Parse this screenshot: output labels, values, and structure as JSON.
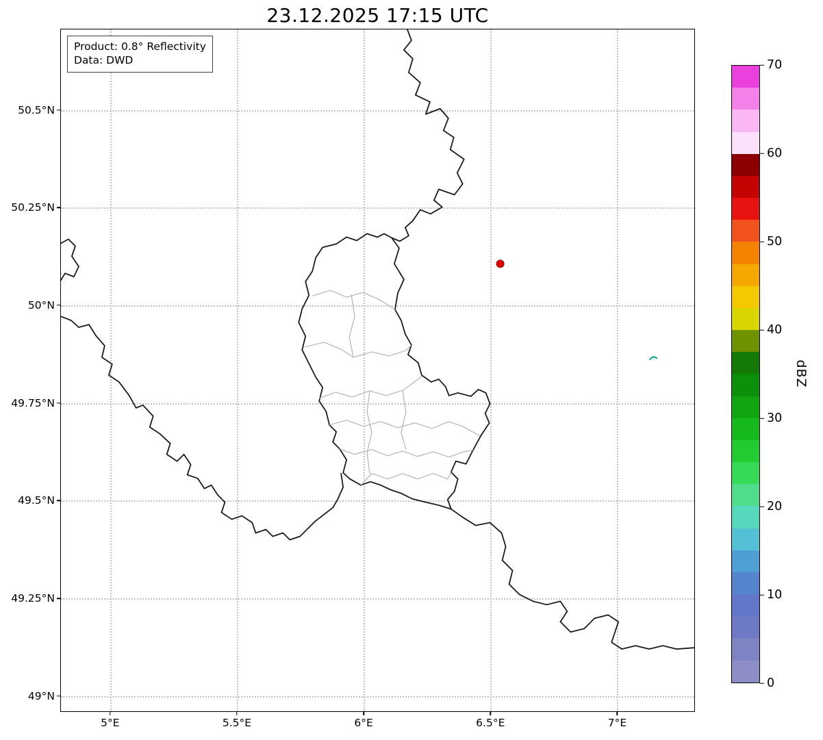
{
  "figure": {
    "title": "23.12.2025 17:15 UTC"
  },
  "info_box": {
    "product_line": "Product: 0.8° Reflectivity",
    "data_line": "Data: DWD"
  },
  "axes": {
    "x_ticks": [
      "5°E",
      "5.5°E",
      "6°E",
      "6.5°E",
      "7°E"
    ],
    "y_ticks": [
      "50.5°N",
      "50.25°N",
      "50°N",
      "49.75°N",
      "49.5°N",
      "49.25°N",
      "49°N"
    ]
  },
  "map": {
    "border_color": "#1a1a1a",
    "district_border_color": "#b3b3b3",
    "marker": {
      "lon": 6.54,
      "lat": 50.11,
      "color": "#e50000",
      "edge_color": "#7a0000"
    },
    "echo": {
      "lon": 7.15,
      "lat": 49.87,
      "color": "#2fb3a3"
    }
  },
  "colorbar": {
    "label": "dBZ",
    "min": 0,
    "max": 70,
    "ticks": [
      0,
      10,
      20,
      30,
      40,
      50,
      60,
      70
    ],
    "colors": [
      "#8e8ec6",
      "#7e83c4",
      "#6f7ac6",
      "#6277c9",
      "#5584cd",
      "#4f9ed6",
      "#53c0d4",
      "#57d8bd",
      "#4fdd8c",
      "#35da57",
      "#22cb31",
      "#16b91b",
      "#10a511",
      "#0c900c",
      "#137a06",
      "#6f9300",
      "#d8d500",
      "#f6c800",
      "#f7a800",
      "#f68300",
      "#f2521c",
      "#e81210",
      "#c40303",
      "#8e0000",
      "#fce1fb",
      "#f9b7f3",
      "#f480e9",
      "#ec40de"
    ]
  }
}
